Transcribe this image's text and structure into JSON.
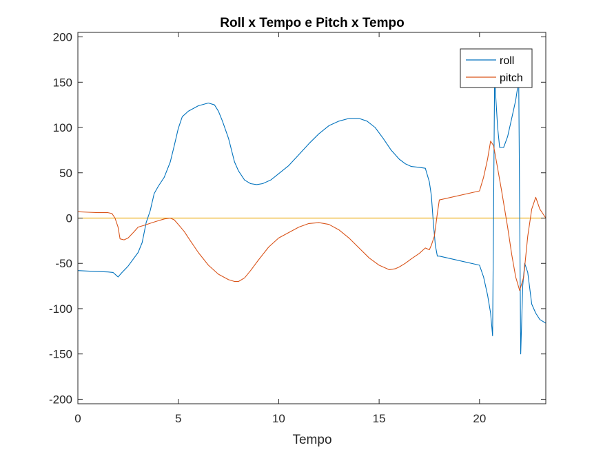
{
  "chart_data": {
    "type": "line",
    "title": "Roll x Tempo e Pitch x Tempo",
    "xlabel": "Tempo",
    "ylabel": "",
    "xlim": [
      0,
      23.3
    ],
    "ylim": [
      -205,
      205
    ],
    "xticks": [
      "0",
      "5",
      "10",
      "15",
      "20"
    ],
    "xtick_values": [
      0,
      5,
      10,
      15,
      20
    ],
    "yticks": [
      "200",
      "150",
      "100",
      "50",
      "0",
      "-50",
      "-100",
      "-150",
      "-200"
    ],
    "ytick_values": [
      200,
      150,
      100,
      50,
      0,
      -50,
      -100,
      -150,
      -200
    ],
    "grid": false,
    "legend_position": "top-right",
    "zero_line": {
      "y": 0,
      "color": "#EDB120"
    },
    "series": [
      {
        "name": "roll",
        "color": "#0072BD",
        "x": [
          0,
          0.5,
          1.0,
          1.5,
          1.75,
          1.9,
          2.0,
          2.2,
          2.5,
          2.8,
          3.0,
          3.2,
          3.4,
          3.6,
          3.8,
          4.0,
          4.3,
          4.6,
          4.8,
          5.0,
          5.2,
          5.5,
          6.0,
          6.5,
          6.8,
          7.0,
          7.2,
          7.5,
          7.8,
          8.0,
          8.3,
          8.6,
          8.9,
          9.2,
          9.6,
          10.0,
          10.5,
          11.0,
          11.5,
          12.0,
          12.5,
          13.0,
          13.5,
          14.0,
          14.4,
          14.8,
          15.2,
          15.6,
          16.0,
          16.3,
          16.6,
          17.0,
          17.3,
          17.5,
          17.6,
          17.7,
          17.8,
          17.9,
          18.0,
          20.0,
          20.2,
          20.4,
          20.55,
          20.65,
          20.75,
          20.9,
          21.0,
          21.2,
          21.4,
          21.6,
          21.8,
          21.95,
          22.05,
          22.15,
          22.25,
          22.4,
          22.6,
          22.8,
          23.0,
          23.3
        ],
        "values": [
          -58,
          -58.5,
          -59,
          -59.5,
          -60,
          -63,
          -65,
          -60,
          -53,
          -44,
          -38,
          -27,
          -5,
          8,
          27,
          35,
          45,
          62,
          80,
          99,
          112,
          118,
          124,
          127,
          125,
          118,
          107,
          88,
          62,
          52,
          42,
          38,
          37,
          38,
          42,
          49,
          58,
          70,
          82,
          93,
          102,
          107,
          110,
          110,
          107,
          100,
          88,
          75,
          65,
          60,
          57,
          56,
          55,
          40,
          25,
          -5,
          -30,
          -42,
          -42,
          -52,
          -65,
          -85,
          -105,
          -130,
          155,
          100,
          78,
          78,
          90,
          110,
          130,
          152,
          -150,
          -75,
          -50,
          -60,
          -95,
          -105,
          -112,
          -116
        ]
      },
      {
        "name": "pitch",
        "color": "#D95319",
        "x": [
          0,
          0.5,
          1.0,
          1.5,
          1.7,
          1.85,
          2.0,
          2.1,
          2.3,
          2.5,
          2.8,
          3.0,
          3.3,
          3.7,
          4.0,
          4.3,
          4.6,
          4.8,
          5.0,
          5.3,
          5.6,
          6.0,
          6.5,
          7.0,
          7.5,
          7.8,
          8.0,
          8.3,
          8.6,
          9.0,
          9.5,
          10.0,
          10.5,
          11.0,
          11.5,
          12.0,
          12.5,
          13.0,
          13.5,
          14.0,
          14.5,
          15.0,
          15.5,
          15.8,
          16.0,
          16.3,
          16.6,
          17.0,
          17.3,
          17.5,
          17.6,
          17.75,
          17.9,
          18.0,
          20.0,
          20.2,
          20.4,
          20.55,
          20.7,
          20.9,
          21.1,
          21.4,
          21.6,
          21.8,
          22.0,
          22.2,
          22.4,
          22.6,
          22.8,
          23.0,
          23.3
        ],
        "values": [
          7,
          6.5,
          6,
          6,
          5,
          0,
          -10,
          -23,
          -24,
          -22,
          -15,
          -10,
          -8,
          -5,
          -3,
          -1,
          0,
          -2,
          -7,
          -15,
          -25,
          -38,
          -52,
          -62,
          -68,
          -70,
          -70,
          -66,
          -58,
          -46,
          -32,
          -22,
          -16,
          -10,
          -6,
          -5,
          -7,
          -13,
          -22,
          -33,
          -44,
          -52,
          -57,
          -56,
          -54,
          -50,
          -45,
          -39,
          -33,
          -35,
          -30,
          -20,
          5,
          20,
          30,
          45,
          65,
          85,
          80,
          55,
          30,
          -10,
          -40,
          -65,
          -80,
          -65,
          -20,
          10,
          23,
          10,
          0
        ]
      }
    ]
  }
}
